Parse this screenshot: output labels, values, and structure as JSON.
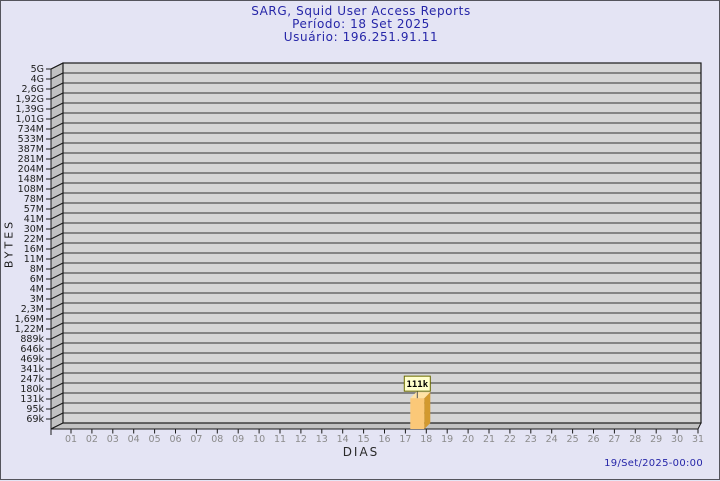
{
  "header": {
    "title": "SARG, Squid User Access Reports",
    "period_label": "Período: 18 Set 2025",
    "user_label": "Usuário: 196.251.91.11"
  },
  "footer": {
    "generated_at": "19/Set/2025-00:00"
  },
  "chart_data": {
    "type": "bar",
    "title": "SARG, Squid User Access Reports",
    "subtitle": "Período: 18 Set 2025",
    "subtitle2": "Usuário: 196.251.91.11",
    "xlabel": "DIAS",
    "ylabel": "BYTES",
    "y_scale": "log",
    "grid": true,
    "legend_position": "none",
    "x_categories": [
      "01",
      "02",
      "03",
      "04",
      "05",
      "06",
      "07",
      "08",
      "09",
      "10",
      "11",
      "12",
      "13",
      "14",
      "15",
      "16",
      "17",
      "18",
      "19",
      "20",
      "21",
      "22",
      "23",
      "24",
      "25",
      "26",
      "27",
      "28",
      "29",
      "30",
      "31"
    ],
    "y_tick_labels": [
      "5G",
      "4G",
      "2,6G",
      "1,92G",
      "1,39G",
      "1,01G",
      "734M",
      "533M",
      "387M",
      "281M",
      "204M",
      "148M",
      "108M",
      "78M",
      "57M",
      "41M",
      "30M",
      "22M",
      "16M",
      "11M",
      "8M",
      "6M",
      "4M",
      "3M",
      "2,3M",
      "1,69M",
      "1,22M",
      "889k",
      "646k",
      "469k",
      "341k",
      "247k",
      "180k",
      "131k",
      "95k",
      "69k"
    ],
    "bars": [
      {
        "day": "18",
        "value_label": "111k"
      }
    ],
    "colors": {
      "background": "#e4e4f4",
      "plot_band": "#d5d5d5",
      "grid_line": "#6a6a6a",
      "wall_fill": "#c2c2c2",
      "axis_line": "#1a1a1a",
      "title_text": "#2626a8",
      "x_tick_text": "#8b8b8b",
      "y_tick_text": "#1c1c1c",
      "bar_front": "#fbc878",
      "bar_side": "#d2992f",
      "bar_top": "#ffe2a5",
      "annotation_bg": "#ffffcc",
      "annotation_border": "#6b6b00",
      "annotation_text": "#000000"
    }
  }
}
